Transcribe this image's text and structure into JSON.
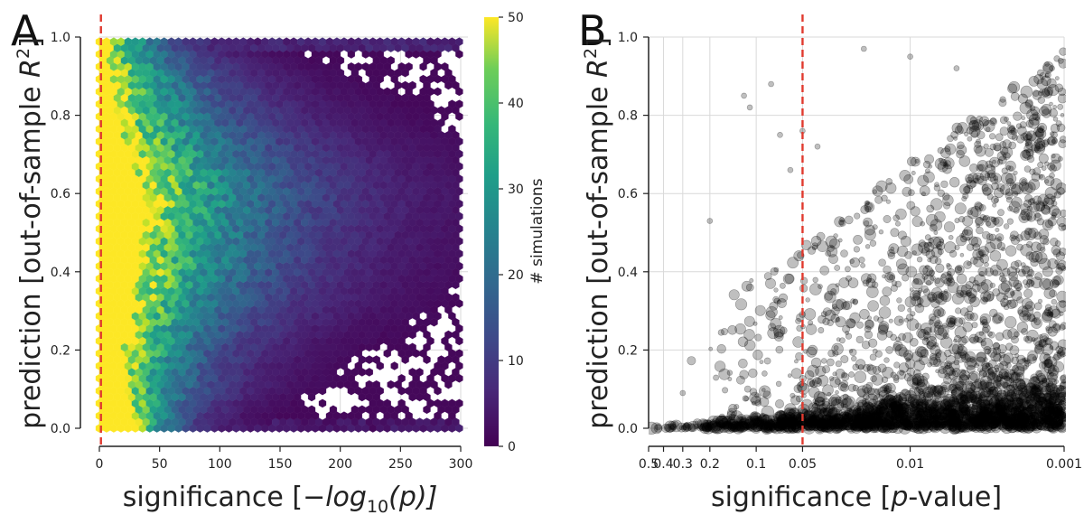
{
  "chart_data": [
    {
      "type": "heatmap",
      "panel_label": "A",
      "xlabel_pre": "significance [",
      "xlabel_math": "−log",
      "xlabel_sub": "10",
      "xlabel_post": "(p)]",
      "ylabel_pre": "prediction [out-of-sample ",
      "ylabel_math": "R",
      "ylabel_sup": "2",
      "ylabel_post": "]",
      "xlim": [
        0,
        300
      ],
      "ylim": [
        0,
        1
      ],
      "xticks": [
        "0",
        "50",
        "100",
        "150",
        "200",
        "250",
        "300"
      ],
      "xtick_values": [
        0,
        50,
        100,
        150,
        200,
        250,
        300
      ],
      "yticks": [
        "0.0",
        "0.2",
        "0.4",
        "0.6",
        "0.8",
        "1.0"
      ],
      "ytick_values": [
        0,
        0.2,
        0.4,
        0.6,
        0.8,
        1.0
      ],
      "grid": true,
      "colormap": "viridis",
      "colorbar": {
        "label": "# simulations",
        "range": [
          0,
          50
        ],
        "ticks": [
          "0",
          "10",
          "20",
          "30",
          "40",
          "50"
        ],
        "tick_values": [
          0,
          10,
          20,
          30,
          40,
          50
        ]
      },
      "threshold_line": {
        "x": 1.301,
        "color": "#e03a2f",
        "style": "dashed"
      },
      "density_profile": {
        "y": [
          0.02,
          0.1,
          0.2,
          0.3,
          0.4,
          0.5,
          0.6,
          0.7,
          0.8,
          0.9,
          0.97
        ],
        "saturated_until_x": [
          28,
          22,
          20,
          26,
          32,
          36,
          38,
          25,
          14,
          11,
          6
        ],
        "falloff_scale_x": [
          30,
          45,
          55,
          70,
          80,
          85,
          90,
          85,
          70,
          55,
          40
        ]
      }
    },
    {
      "type": "scatter",
      "panel_label": "B",
      "xlabel_pre": "significance [",
      "xlabel_math": "p",
      "xlabel_post": "-value]",
      "ylabel_pre": "prediction [out-of-sample ",
      "ylabel_math": "R",
      "ylabel_sup": "2",
      "ylabel_post": "]",
      "x_scale": "log (p-value, decreasing left to right)",
      "xlim": [
        0.5,
        0.001
      ],
      "ylim": [
        0,
        1
      ],
      "xticks": [
        "0.5",
        "0.4",
        "0.3",
        "0.2",
        "0.1",
        "0.05",
        "0.01",
        "0.001"
      ],
      "xtick_values": [
        0.5,
        0.4,
        0.3,
        0.2,
        0.1,
        0.05,
        0.01,
        0.001
      ],
      "yticks": [
        "0.0",
        "0.2",
        "0.4",
        "0.6",
        "0.8",
        "1.0"
      ],
      "ytick_values": [
        0,
        0.2,
        0.4,
        0.6,
        0.8,
        1.0
      ],
      "grid": true,
      "marker_color": "#000000",
      "marker_alpha": 0.25,
      "threshold_line": {
        "x": 0.05,
        "color": "#e03a2f",
        "style": "dashed"
      },
      "sample_points": [
        {
          "p": 0.3,
          "r2": 0.09
        },
        {
          "p": 0.2,
          "r2": 0.53
        },
        {
          "p": 0.12,
          "r2": 0.85
        },
        {
          "p": 0.11,
          "r2": 0.82
        },
        {
          "p": 0.08,
          "r2": 0.88
        },
        {
          "p": 0.07,
          "r2": 0.75
        },
        {
          "p": 0.06,
          "r2": 0.66
        },
        {
          "p": 0.05,
          "r2": 0.76
        },
        {
          "p": 0.04,
          "r2": 0.72
        },
        {
          "p": 0.02,
          "r2": 0.97
        },
        {
          "p": 0.01,
          "r2": 0.95
        },
        {
          "p": 0.005,
          "r2": 0.92
        },
        {
          "p": 0.0012,
          "r2": 0.92
        }
      ]
    }
  ]
}
